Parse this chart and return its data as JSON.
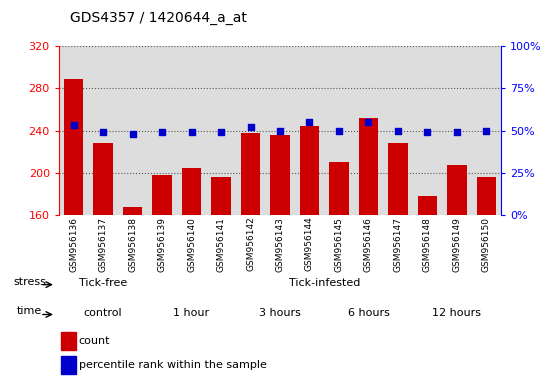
{
  "title": "GDS4357 / 1420644_a_at",
  "samples": [
    "GSM956136",
    "GSM956137",
    "GSM956138",
    "GSM956139",
    "GSM956140",
    "GSM956141",
    "GSM956142",
    "GSM956143",
    "GSM956144",
    "GSM956145",
    "GSM956146",
    "GSM956147",
    "GSM956148",
    "GSM956149",
    "GSM956150"
  ],
  "counts": [
    289,
    228,
    168,
    198,
    205,
    196,
    238,
    236,
    244,
    210,
    252,
    228,
    178,
    207,
    196
  ],
  "percentiles": [
    53,
    49,
    48,
    49,
    49,
    49,
    52,
    50,
    55,
    50,
    55,
    50,
    49,
    49,
    50
  ],
  "bar_color": "#cc0000",
  "dot_color": "#0000cc",
  "ylim_left": [
    160,
    320
  ],
  "ylim_right": [
    0,
    100
  ],
  "yticks_left": [
    160,
    200,
    240,
    280,
    320
  ],
  "yticks_right": [
    0,
    25,
    50,
    75,
    100
  ],
  "stress_groups": [
    {
      "label": "Tick-free",
      "start": 0,
      "end": 3,
      "color": "#88ee88"
    },
    {
      "label": "Tick-infested",
      "start": 3,
      "end": 15,
      "color": "#66dd66"
    }
  ],
  "time_groups": [
    {
      "label": "control",
      "start": 0,
      "end": 3,
      "color": "#f0b0f0"
    },
    {
      "label": "1 hour",
      "start": 3,
      "end": 6,
      "color": "#ee88ee"
    },
    {
      "label": "3 hours",
      "start": 6,
      "end": 9,
      "color": "#f0b0f0"
    },
    {
      "label": "6 hours",
      "start": 9,
      "end": 12,
      "color": "#ee88ee"
    },
    {
      "label": "12 hours",
      "start": 12,
      "end": 15,
      "color": "#ee88ee"
    }
  ],
  "legend_count_label": "count",
  "legend_pct_label": "percentile rank within the sample",
  "stress_label": "stress",
  "time_label": "time",
  "plot_bg_color": "#dddddd",
  "tick_bg_color": "#cccccc",
  "border_color": "#888888"
}
